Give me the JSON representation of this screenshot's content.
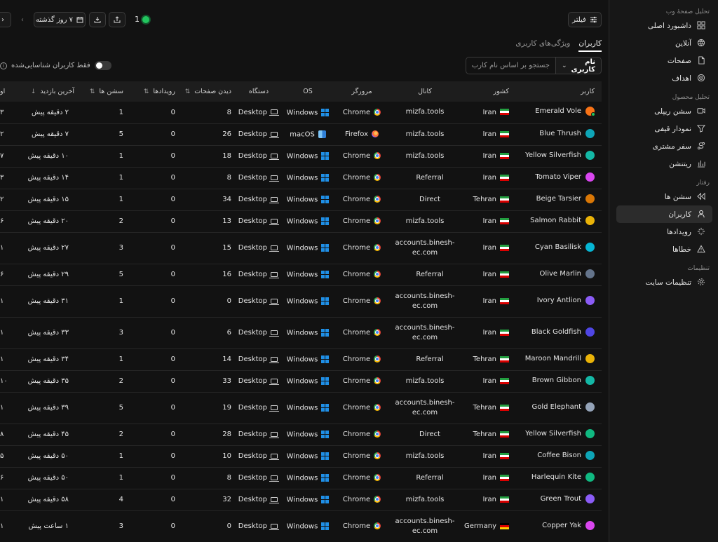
{
  "sidebar": {
    "sections": [
      {
        "title": "تحلیل صفحهٔ وب",
        "items": [
          {
            "label": "داشبورد اصلی",
            "icon": "dashboard-icon"
          },
          {
            "label": "آنلاین",
            "icon": "globe-icon"
          },
          {
            "label": "صفحات",
            "icon": "file-icon"
          },
          {
            "label": "اهداف",
            "icon": "target-icon"
          }
        ]
      },
      {
        "title": "تحلیل محصول",
        "items": [
          {
            "label": "سشن ریپلی",
            "icon": "video-icon"
          },
          {
            "label": "نمودار قیفی",
            "icon": "funnel-icon"
          },
          {
            "label": "سفر مشتری",
            "icon": "journey-icon"
          },
          {
            "label": "ریتنشن",
            "icon": "bar-chart-icon"
          }
        ]
      },
      {
        "title": "رفتار",
        "items": [
          {
            "label": "سشن ها",
            "icon": "rewind-icon"
          },
          {
            "label": "کاربران",
            "icon": "user-icon",
            "active": true
          },
          {
            "label": "رویدادها",
            "icon": "sparkle-icon"
          },
          {
            "label": "خطاها",
            "icon": "warning-icon"
          }
        ]
      },
      {
        "title": "تنظیمات",
        "items": [
          {
            "label": "تنظیمات سایت",
            "icon": "gear-icon"
          }
        ]
      }
    ]
  },
  "toolbar": {
    "filter_label": "فیلتر",
    "date_range_label": "۷ روز گذشته",
    "online_count": "1"
  },
  "tabs": [
    {
      "label": "کاربران",
      "active": true
    },
    {
      "label": "ویژگی‌های کاربری",
      "active": false
    }
  ],
  "search": {
    "field_label": "نام کاربری",
    "placeholder": "جستجو بر اساس نام کارب"
  },
  "identified_toggle_label": "فقط کاربران شناسایی‌شده",
  "table": {
    "columns": {
      "user": "کاربر",
      "country": "کشور",
      "channel": "کانال",
      "browser": "مرورگر",
      "os": "OS",
      "device": "دستگاه",
      "page_views": "دیدن صفحات",
      "events": "رویدادها",
      "sessions": "سشن ها",
      "last_visit": "آخرین بازدید",
      "edge": "او"
    },
    "rows": [
      {
        "user": "Emerald Vole",
        "avatar": "#f97316",
        "online": true,
        "country": "Iran",
        "flag": "ir",
        "channel": "mizfa.tools",
        "channel_icon": "",
        "browser": "Chrome",
        "os": "Windows",
        "device": "Desktop",
        "page_views": "8",
        "events": "0",
        "sessions": "1",
        "last_visit": "۲ دقیقه پیش",
        "edge": "۳"
      },
      {
        "user": "Blue Thrush",
        "avatar": "#0ea5b7",
        "country": "Iran",
        "flag": "ir",
        "channel": "mizfa.tools",
        "channel_icon": "",
        "browser": "Firefox",
        "os": "macOS",
        "device": "Desktop",
        "page_views": "26",
        "events": "0",
        "sessions": "5",
        "last_visit": "۷ دقیقه پیش",
        "edge": "۲"
      },
      {
        "user": "Yellow Silverfish",
        "avatar": "#14b8a6",
        "country": "Iran",
        "flag": "ir",
        "channel": "mizfa.tools",
        "channel_icon": "",
        "browser": "Chrome",
        "os": "Windows",
        "device": "Desktop",
        "page_views": "18",
        "events": "0",
        "sessions": "1",
        "last_visit": "۱۰ دقیقه پیش",
        "edge": "۷"
      },
      {
        "user": "Tomato Viper",
        "avatar": "#d946ef",
        "country": "Iran",
        "flag": "ir",
        "channel": "Referral",
        "channel_icon": "external",
        "browser": "Chrome",
        "os": "Windows",
        "device": "Desktop",
        "page_views": "8",
        "events": "0",
        "sessions": "1",
        "last_visit": "۱۴ دقیقه پیش",
        "edge": "۳"
      },
      {
        "user": "Beige Tarsier",
        "avatar": "#d97706",
        "country": "Tehran",
        "flag": "ir",
        "channel": "Direct",
        "channel_icon": "link",
        "browser": "Chrome",
        "os": "Windows",
        "device": "Desktop",
        "page_views": "34",
        "events": "0",
        "sessions": "1",
        "last_visit": "۱۵ دقیقه پیش",
        "edge": "۲"
      },
      {
        "user": "Salmon Rabbit",
        "avatar": "#eab308",
        "country": "Iran",
        "flag": "ir",
        "channel": "mizfa.tools",
        "channel_icon": "",
        "browser": "Chrome",
        "os": "Windows",
        "device": "Desktop",
        "page_views": "13",
        "events": "0",
        "sessions": "2",
        "last_visit": "۲۰ دقیقه پیش",
        "edge": "۶"
      },
      {
        "user": "Cyan Basilisk",
        "avatar": "#06b6d4",
        "country": "Iran",
        "flag": "ir",
        "channel": "accounts.binesh-ec.com",
        "channel_icon": "",
        "browser": "Chrome",
        "os": "Windows",
        "device": "Desktop",
        "page_views": "15",
        "events": "0",
        "sessions": "3",
        "last_visit": "۲۷ دقیقه پیش",
        "edge": "۱",
        "tall": true
      },
      {
        "user": "Olive Marlin",
        "avatar": "#64748b",
        "country": "Iran",
        "flag": "ir",
        "channel": "Referral",
        "channel_icon": "external",
        "browser": "Chrome",
        "os": "Windows",
        "device": "Desktop",
        "page_views": "16",
        "events": "0",
        "sessions": "5",
        "last_visit": "۲۹ دقیقه پیش",
        "edge": "۶"
      },
      {
        "user": "Ivory Antlion",
        "avatar": "#8b5cf6",
        "country": "Iran",
        "flag": "ir",
        "channel": "accounts.binesh-ec.com",
        "channel_icon": "",
        "browser": "Chrome",
        "os": "Windows",
        "device": "Desktop",
        "page_views": "0",
        "events": "0",
        "sessions": "1",
        "last_visit": "۳۱ دقیقه پیش",
        "edge": "۱",
        "tall": true
      },
      {
        "user": "Black Goldfish",
        "avatar": "#4f46e5",
        "country": "Iran",
        "flag": "ir",
        "channel": "accounts.binesh-ec.com",
        "channel_icon": "",
        "browser": "Chrome",
        "os": "Windows",
        "device": "Desktop",
        "page_views": "6",
        "events": "0",
        "sessions": "3",
        "last_visit": "۳۳ دقیقه پیش",
        "edge": "۱",
        "tall": true
      },
      {
        "user": "Maroon Mandrill",
        "avatar": "#eab308",
        "country": "Tehran",
        "flag": "ir",
        "channel": "Referral",
        "channel_icon": "external",
        "browser": "Chrome",
        "os": "Windows",
        "device": "Desktop",
        "page_views": "14",
        "events": "0",
        "sessions": "1",
        "last_visit": "۳۴ دقیقه پیش",
        "edge": "۱"
      },
      {
        "user": "Brown Gibbon",
        "avatar": "#14b8a6",
        "country": "Iran",
        "flag": "ir",
        "channel": "mizfa.tools",
        "channel_icon": "",
        "browser": "Chrome",
        "os": "Windows",
        "device": "Desktop",
        "page_views": "33",
        "events": "0",
        "sessions": "2",
        "last_visit": "۳۵ دقیقه پیش",
        "edge": "۱۰"
      },
      {
        "user": "Gold Elephant",
        "avatar": "#94a3b8",
        "country": "Tehran",
        "flag": "ir",
        "channel": "accounts.binesh-ec.com",
        "channel_icon": "",
        "browser": "Chrome",
        "os": "Windows",
        "device": "Desktop",
        "page_views": "19",
        "events": "0",
        "sessions": "5",
        "last_visit": "۳۹ دقیقه پیش",
        "edge": "۱",
        "tall": true
      },
      {
        "user": "Yellow Silverfish",
        "avatar": "#10b981",
        "country": "Tehran",
        "flag": "ir",
        "channel": "Direct",
        "channel_icon": "link",
        "browser": "Chrome",
        "os": "Windows",
        "device": "Desktop",
        "page_views": "28",
        "events": "0",
        "sessions": "2",
        "last_visit": "۴۵ دقیقه پیش",
        "edge": "۸"
      },
      {
        "user": "Coffee Bison",
        "avatar": "#0ea5b7",
        "country": "Iran",
        "flag": "ir",
        "channel": "mizfa.tools",
        "channel_icon": "",
        "browser": "Chrome",
        "os": "Windows",
        "device": "Desktop",
        "page_views": "10",
        "events": "0",
        "sessions": "1",
        "last_visit": "۵۰ دقیقه پیش",
        "edge": "۵"
      },
      {
        "user": "Harlequin Kite",
        "avatar": "#10b981",
        "country": "Iran",
        "flag": "ir",
        "channel": "Referral",
        "channel_icon": "external",
        "browser": "Chrome",
        "os": "Windows",
        "device": "Desktop",
        "page_views": "8",
        "events": "0",
        "sessions": "1",
        "last_visit": "۵۰ دقیقه پیش",
        "edge": "۶"
      },
      {
        "user": "Green Trout",
        "avatar": "#8b5cf6",
        "country": "Iran",
        "flag": "ir",
        "channel": "mizfa.tools",
        "channel_icon": "",
        "browser": "Chrome",
        "os": "Windows",
        "device": "Desktop",
        "page_views": "32",
        "events": "0",
        "sessions": "4",
        "last_visit": "۵۸ دقیقه پیش",
        "edge": "۱"
      },
      {
        "user": "Copper Yak",
        "avatar": "#d946ef",
        "country": "Germany",
        "flag": "de",
        "channel": "accounts.binesh-ec.com",
        "channel_icon": "",
        "browser": "Chrome",
        "os": "Windows",
        "device": "Desktop",
        "page_views": "0",
        "events": "0",
        "sessions": "3",
        "last_visit": "۱ ساعت پیش",
        "edge": "۱",
        "tall": true
      }
    ]
  }
}
